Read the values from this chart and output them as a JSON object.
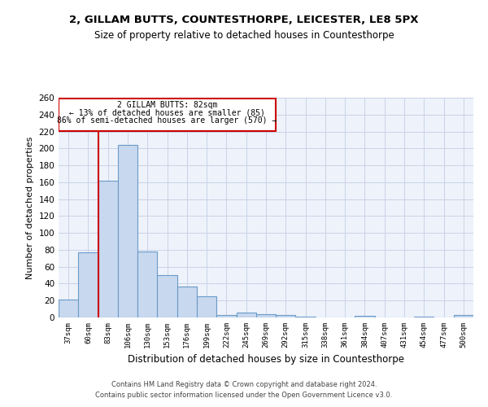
{
  "title_line1": "2, GILLAM BUTTS, COUNTESTHORPE, LEICESTER, LE8 5PX",
  "title_line2": "Size of property relative to detached houses in Countesthorpe",
  "xlabel": "Distribution of detached houses by size in Countesthorpe",
  "ylabel": "Number of detached properties",
  "footer_line1": "Contains HM Land Registry data © Crown copyright and database right 2024.",
  "footer_line2": "Contains public sector information licensed under the Open Government Licence v3.0.",
  "bar_color": "#c8d8ee",
  "bar_edge_color": "#6a9bc9",
  "grid_color": "#c8d4e8",
  "background_color": "#eef2fa",
  "annotation_box_color": "#cc0000",
  "vline_color": "#cc0000",
  "annotation_text_line1": "2 GILLAM BUTTS: 82sqm",
  "annotation_text_line2": "← 13% of detached houses are smaller (85)",
  "annotation_text_line3": "86% of semi-detached houses are larger (570) →",
  "categories": [
    "37sqm",
    "60sqm",
    "83sqm",
    "106sqm",
    "130sqm",
    "153sqm",
    "176sqm",
    "199sqm",
    "222sqm",
    "245sqm",
    "269sqm",
    "292sqm",
    "315sqm",
    "338sqm",
    "361sqm",
    "384sqm",
    "407sqm",
    "431sqm",
    "454sqm",
    "477sqm",
    "500sqm"
  ],
  "values": [
    21,
    77,
    162,
    204,
    78,
    50,
    37,
    25,
    3,
    6,
    4,
    3,
    1,
    0,
    0,
    2,
    0,
    0,
    1,
    0,
    3
  ],
  "ylim": [
    0,
    260
  ],
  "yticks": [
    0,
    20,
    40,
    60,
    80,
    100,
    120,
    140,
    160,
    180,
    200,
    220,
    240,
    260
  ],
  "vline_x": 1.5
}
